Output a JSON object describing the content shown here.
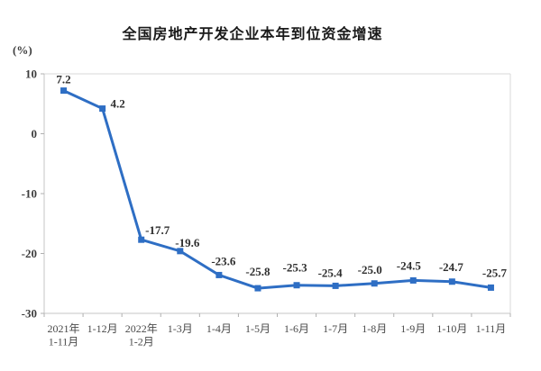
{
  "page": {
    "title": "全国房地产开发企业本年到位资金增速",
    "unit_label": "(%)"
  },
  "chart_data": {
    "type": "line",
    "title": "全国房地产开发企业本年到位资金增速",
    "ylabel": "(%)",
    "categories": [
      [
        "2021年",
        "1-11月"
      ],
      [
        "1-12月"
      ],
      [
        "2022年",
        "1-2月"
      ],
      [
        "1-3月"
      ],
      [
        "1-4月"
      ],
      [
        "1-5月"
      ],
      [
        "1-6月"
      ],
      [
        "1-7月"
      ],
      [
        "1-8月"
      ],
      [
        "1-9月"
      ],
      [
        "1-10月"
      ],
      [
        "1-11月"
      ]
    ],
    "values": [
      7.2,
      4.2,
      -17.7,
      -19.6,
      -23.6,
      -25.8,
      -25.3,
      -25.4,
      -25.0,
      -24.5,
      -24.7,
      -25.7
    ],
    "value_labels": [
      "7.2",
      "4.2",
      "-17.7",
      "-19.6",
      "-23.6",
      "-25.8",
      "-25.3",
      "-25.4",
      "-25.0",
      "-24.5",
      "-24.7",
      "-25.7"
    ],
    "y_ticks": [
      10,
      0,
      -10,
      -20,
      -30
    ],
    "ylim": [
      -30,
      10
    ],
    "grid": false,
    "legend": null,
    "line_color": "#2e6ec4",
    "marker": "square",
    "axis_color": "#c6c6c6",
    "border_color": "#d9d9d9",
    "tick_color": "#b0b0b0"
  }
}
